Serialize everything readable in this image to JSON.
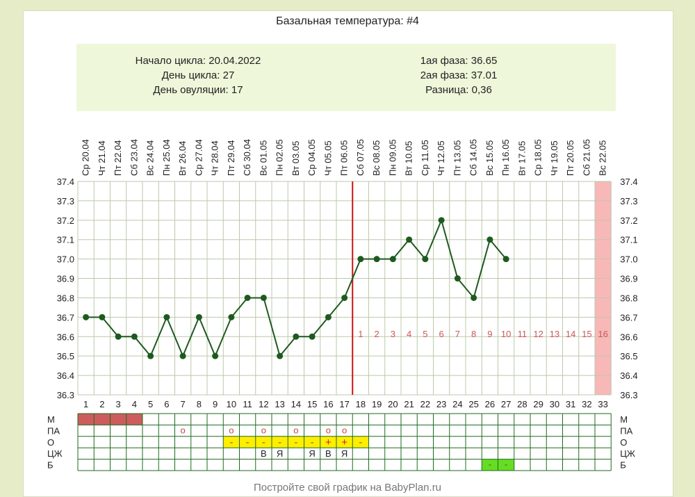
{
  "title": "Базальная температура: #4",
  "info": {
    "cycle_start": "Начало цикла: 20.04.2022",
    "cycle_day": "День цикла: 27",
    "ovulation_day": "День овуляции: 17",
    "phase1": "1ая фаза: 36.65",
    "phase2": "2ая фаза: 37.01",
    "difference": "Разница: 0,36"
  },
  "footer": "Постройте свой график на BabyPlan.ru",
  "colors": {
    "line": "#1e5a1e",
    "ovulation_line": "#cc1111",
    "menstruation": "#cd5c5c",
    "mucus_cell": "#ffee00",
    "b_cell": "#66dd22",
    "forecast": "#f8b8b8",
    "grid": "#bcc8ac",
    "table_border": "#1e6a1e"
  },
  "chart_data": {
    "type": "line",
    "title": "Базальная температура: #4",
    "days": [
      1,
      2,
      3,
      4,
      5,
      6,
      7,
      8,
      9,
      10,
      11,
      12,
      13,
      14,
      15,
      16,
      17,
      18,
      19,
      20,
      21,
      22,
      23,
      24,
      25,
      26,
      27,
      28,
      29,
      30,
      31,
      32,
      33
    ],
    "dates": [
      "Ср 20.04",
      "Чт 21.04",
      "Пт 22.04",
      "Сб 23.04",
      "Вс 24.04",
      "Пн 25.04",
      "Вт 26.04",
      "Ср 27.04",
      "Чт 28.04",
      "Пт 29.04",
      "Сб 30.04",
      "Вс 01.05",
      "Пн 02.05",
      "Вт 03.05",
      "Ср 04.05",
      "Чт 05.05",
      "Пт 06.05",
      "Сб 07.05",
      "Вс 08.05",
      "Пн 09.05",
      "Вт 10.05",
      "Ср 11.05",
      "Чт 12.05",
      "Пт 13.05",
      "Сб 14.05",
      "Вс 15.05",
      "Пн 16.05",
      "Вт 17.05",
      "Ср 18.05",
      "Чт 19.05",
      "Пт 20.05",
      "Сб 21.05",
      "Вс 22.05"
    ],
    "temperatures": [
      36.7,
      36.7,
      36.6,
      36.6,
      36.5,
      36.7,
      36.5,
      36.7,
      36.5,
      36.7,
      36.8,
      36.8,
      36.5,
      36.6,
      36.6,
      36.7,
      36.8,
      37.0,
      37.0,
      37.0,
      37.1,
      37.0,
      37.2,
      36.9,
      36.8,
      37.1,
      37.0
    ],
    "ylim": [
      36.3,
      37.4
    ],
    "yticks": [
      "36.3",
      "36.4",
      "36.5",
      "36.6",
      "36.7",
      "36.8",
      "36.9",
      "37.0",
      "37.1",
      "37.2",
      "37.3",
      "37.4"
    ],
    "ovulation_day": 17,
    "post_ovulation_counts": [
      "1",
      "2",
      "3",
      "4",
      "5",
      "6",
      "7",
      "8",
      "9",
      "10",
      "11",
      "12",
      "13",
      "14",
      "15",
      "16"
    ],
    "post_ovulation_start_day": 18,
    "expected_period_day": 33,
    "grid": true
  },
  "symptoms": {
    "row_labels": [
      "М",
      "ПА",
      "О",
      "ЦЖ",
      "Б"
    ],
    "menstruation_days": [
      1,
      2,
      3,
      4
    ],
    "pa_marks": [
      {
        "day": 7,
        "mark": "o"
      },
      {
        "day": 10,
        "mark": "o"
      },
      {
        "day": 12,
        "mark": "o"
      },
      {
        "day": 14,
        "mark": "o"
      },
      {
        "day": 16,
        "mark": "o"
      },
      {
        "day": 17,
        "mark": "o"
      }
    ],
    "o_marks": [
      {
        "day": 10,
        "mark": "-"
      },
      {
        "day": 11,
        "mark": "-"
      },
      {
        "day": 12,
        "mark": "-"
      },
      {
        "day": 13,
        "mark": "-"
      },
      {
        "day": 14,
        "mark": "-"
      },
      {
        "day": 15,
        "mark": "-"
      },
      {
        "day": 16,
        "mark": "+"
      },
      {
        "day": 17,
        "mark": "+"
      },
      {
        "day": 18,
        "mark": "-"
      }
    ],
    "cz_marks": [
      {
        "day": 12,
        "mark": "В"
      },
      {
        "day": 13,
        "mark": "Я"
      },
      {
        "day": 15,
        "mark": "Я"
      },
      {
        "day": 16,
        "mark": "В"
      },
      {
        "day": 17,
        "mark": "Я"
      }
    ],
    "b_marks": [
      {
        "day": 26,
        "mark": "-"
      },
      {
        "day": 27,
        "mark": "-"
      }
    ]
  }
}
